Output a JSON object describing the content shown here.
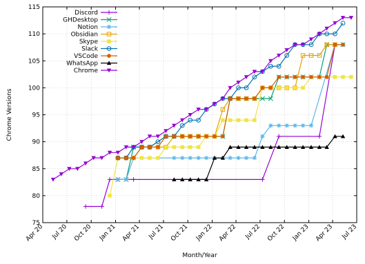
{
  "chart_data": {
    "type": "line",
    "xlabel": "Month/Year",
    "ylabel": "Chrome Versions",
    "ylim": [
      75,
      115
    ],
    "xlim": [
      "2020-04",
      "2023-07"
    ],
    "grid": true,
    "legend_position": "top-left",
    "y_ticks": [
      "75",
      "80",
      "85",
      "90",
      "95",
      "100",
      "105",
      "110",
      "115"
    ],
    "x_ticks": [
      {
        "label": "Apr 20",
        "date": "2020-04"
      },
      {
        "label": "Jul 20",
        "date": "2020-07"
      },
      {
        "label": "Oct 20",
        "date": "2020-10"
      },
      {
        "label": "Jan 21",
        "date": "2021-01"
      },
      {
        "label": "Apr 21",
        "date": "2021-04"
      },
      {
        "label": "Jul 21",
        "date": "2021-07"
      },
      {
        "label": "Oct 21",
        "date": "2021-10"
      },
      {
        "label": "Jan 22",
        "date": "2022-01"
      },
      {
        "label": "Apr 22",
        "date": "2022-04"
      },
      {
        "label": "Jul 22",
        "date": "2022-07"
      },
      {
        "label": "Oct 22",
        "date": "2022-10"
      },
      {
        "label": "Jan 23",
        "date": "2023-01"
      },
      {
        "label": "Apr 23",
        "date": "2023-04"
      },
      {
        "label": "Jul 23",
        "date": "2023-07"
      }
    ],
    "series": [
      {
        "name": "Discord",
        "color": "#9400d3",
        "marker": "plus",
        "points": [
          [
            "2020-09-10",
            78
          ],
          [
            "2020-11-10",
            78
          ],
          [
            "2020-12-10",
            83
          ],
          [
            "2021-01-10",
            83
          ],
          [
            "2021-03-10",
            83
          ],
          [
            "2022-07-10",
            83
          ],
          [
            "2022-09-10",
            91
          ],
          [
            "2023-02-10",
            91
          ],
          [
            "2023-04-10",
            108
          ]
        ]
      },
      {
        "name": "GHDesktop",
        "color": "#009e73",
        "marker": "x",
        "points": [
          [
            "2021-01-10",
            83
          ],
          [
            "2021-02-10",
            83
          ],
          [
            "2021-03-10",
            89
          ],
          [
            "2021-04-10",
            89
          ],
          [
            "2021-05-10",
            89
          ],
          [
            "2021-07-10",
            91
          ],
          [
            "2021-08-10",
            91
          ],
          [
            "2021-09-10",
            91
          ],
          [
            "2021-10-10",
            91
          ],
          [
            "2021-11-10",
            91
          ],
          [
            "2021-12-10",
            91
          ],
          [
            "2022-01-10",
            91
          ],
          [
            "2022-02-10",
            91
          ],
          [
            "2022-03-10",
            98
          ],
          [
            "2022-04-10",
            98
          ],
          [
            "2022-05-10",
            98
          ],
          [
            "2022-06-10",
            98
          ],
          [
            "2022-07-10",
            98
          ],
          [
            "2022-08-10",
            98
          ],
          [
            "2022-09-10",
            102
          ],
          [
            "2022-10-10",
            102
          ],
          [
            "2022-11-10",
            102
          ],
          [
            "2022-12-10",
            102
          ],
          [
            "2023-01-10",
            102
          ],
          [
            "2023-02-10",
            102
          ],
          [
            "2023-03-10",
            108
          ],
          [
            "2023-04-10",
            108
          ],
          [
            "2023-05-10",
            108
          ]
        ]
      },
      {
        "name": "Notion",
        "color": "#56b4e9",
        "marker": "star",
        "points": [
          [
            "2021-01-10",
            83
          ],
          [
            "2021-02-10",
            83
          ],
          [
            "2021-03-10",
            87
          ],
          [
            "2021-08-10",
            87
          ],
          [
            "2021-09-10",
            87
          ],
          [
            "2021-10-10",
            87
          ],
          [
            "2021-11-10",
            87
          ],
          [
            "2021-12-10",
            87
          ],
          [
            "2022-01-10",
            87
          ],
          [
            "2022-02-10",
            87
          ],
          [
            "2022-03-10",
            87
          ],
          [
            "2022-04-10",
            87
          ],
          [
            "2022-05-10",
            87
          ],
          [
            "2022-06-10",
            87
          ],
          [
            "2022-07-10",
            91
          ],
          [
            "2022-08-10",
            93
          ],
          [
            "2022-09-10",
            93
          ],
          [
            "2022-10-10",
            93
          ],
          [
            "2022-11-10",
            93
          ],
          [
            "2022-12-10",
            93
          ],
          [
            "2023-01-10",
            93
          ],
          [
            "2023-04-10",
            108
          ],
          [
            "2023-05-10",
            108
          ]
        ]
      },
      {
        "name": "Obsidian",
        "color": "#e69f00",
        "marker": "square",
        "points": [
          [
            "2021-01-10",
            87
          ],
          [
            "2021-02-10",
            87
          ],
          [
            "2021-03-10",
            87
          ],
          [
            "2021-04-10",
            89
          ],
          [
            "2021-05-10",
            89
          ],
          [
            "2021-06-10",
            89
          ],
          [
            "2021-07-10",
            89
          ],
          [
            "2021-08-10",
            91
          ],
          [
            "2021-09-10",
            91
          ],
          [
            "2021-10-10",
            91
          ],
          [
            "2021-11-10",
            91
          ],
          [
            "2021-12-10",
            91
          ],
          [
            "2022-01-10",
            91
          ],
          [
            "2022-02-10",
            96
          ],
          [
            "2022-03-10",
            98
          ],
          [
            "2022-04-10",
            98
          ],
          [
            "2022-05-10",
            98
          ],
          [
            "2022-06-10",
            98
          ],
          [
            "2022-07-10",
            100
          ],
          [
            "2022-08-10",
            100
          ],
          [
            "2022-09-10",
            100
          ],
          [
            "2022-10-10",
            100
          ],
          [
            "2022-11-10",
            100
          ],
          [
            "2022-12-10",
            106
          ],
          [
            "2023-01-10",
            106
          ],
          [
            "2023-02-10",
            106
          ],
          [
            "2023-03-10",
            108
          ],
          [
            "2023-04-10",
            108
          ]
        ]
      },
      {
        "name": "Skype",
        "color": "#f0e442",
        "marker": "filled-square",
        "points": [
          [
            "2020-12-10",
            80
          ],
          [
            "2021-01-10",
            87
          ],
          [
            "2021-02-10",
            87
          ],
          [
            "2021-03-10",
            87
          ],
          [
            "2021-04-10",
            87
          ],
          [
            "2021-05-10",
            87
          ],
          [
            "2021-06-10",
            87
          ],
          [
            "2021-07-10",
            89
          ],
          [
            "2021-08-10",
            89
          ],
          [
            "2021-09-10",
            89
          ],
          [
            "2021-10-10",
            89
          ],
          [
            "2021-11-10",
            89
          ],
          [
            "2021-12-10",
            91
          ],
          [
            "2022-01-10",
            91
          ],
          [
            "2022-02-10",
            94
          ],
          [
            "2022-03-10",
            94
          ],
          [
            "2022-04-10",
            94
          ],
          [
            "2022-05-10",
            94
          ],
          [
            "2022-06-10",
            94
          ],
          [
            "2022-07-10",
            100
          ],
          [
            "2022-08-10",
            100
          ],
          [
            "2022-09-10",
            100
          ],
          [
            "2022-10-10",
            100
          ],
          [
            "2022-11-10",
            100
          ],
          [
            "2022-12-10",
            100
          ],
          [
            "2023-01-10",
            102
          ],
          [
            "2023-02-10",
            102
          ],
          [
            "2023-03-10",
            102
          ],
          [
            "2023-04-10",
            102
          ],
          [
            "2023-05-10",
            102
          ],
          [
            "2023-06-10",
            102
          ]
        ]
      },
      {
        "name": "Slack",
        "color": "#0072b2",
        "marker": "circle",
        "points": [
          [
            "2021-01-10",
            87
          ],
          [
            "2021-02-10",
            87
          ],
          [
            "2021-03-10",
            89
          ],
          [
            "2021-04-10",
            89
          ],
          [
            "2021-05-10",
            89
          ],
          [
            "2021-06-10",
            90
          ],
          [
            "2021-07-10",
            91
          ],
          [
            "2021-08-10",
            91
          ],
          [
            "2021-09-10",
            93
          ],
          [
            "2021-10-10",
            94
          ],
          [
            "2021-11-10",
            94
          ],
          [
            "2021-12-10",
            96
          ],
          [
            "2022-01-10",
            97
          ],
          [
            "2022-02-10",
            98
          ],
          [
            "2022-03-10",
            98
          ],
          [
            "2022-04-10",
            100
          ],
          [
            "2022-05-10",
            100
          ],
          [
            "2022-06-10",
            102
          ],
          [
            "2022-07-10",
            103
          ],
          [
            "2022-08-10",
            104
          ],
          [
            "2022-09-10",
            104
          ],
          [
            "2022-10-10",
            106
          ],
          [
            "2022-11-10",
            108
          ],
          [
            "2022-12-10",
            108
          ],
          [
            "2023-01-10",
            108
          ],
          [
            "2023-02-10",
            110
          ],
          [
            "2023-03-10",
            110
          ],
          [
            "2023-04-10",
            110
          ],
          [
            "2023-05-10",
            112
          ]
        ]
      },
      {
        "name": "VSCode",
        "color": "#d55e00",
        "marker": "filled-circle",
        "points": [
          [
            "2021-01-10",
            87
          ],
          [
            "2021-02-10",
            87
          ],
          [
            "2021-03-10",
            87
          ],
          [
            "2021-04-10",
            89
          ],
          [
            "2021-05-10",
            89
          ],
          [
            "2021-06-10",
            89
          ],
          [
            "2021-07-10",
            91
          ],
          [
            "2021-08-10",
            91
          ],
          [
            "2021-09-10",
            91
          ],
          [
            "2021-10-10",
            91
          ],
          [
            "2021-11-10",
            91
          ],
          [
            "2021-12-10",
            91
          ],
          [
            "2022-01-10",
            91
          ],
          [
            "2022-02-10",
            91
          ],
          [
            "2022-03-10",
            98
          ],
          [
            "2022-04-10",
            98
          ],
          [
            "2022-05-10",
            98
          ],
          [
            "2022-06-10",
            98
          ],
          [
            "2022-07-10",
            100
          ],
          [
            "2022-08-10",
            100
          ],
          [
            "2022-09-10",
            102
          ],
          [
            "2022-10-10",
            102
          ],
          [
            "2022-11-10",
            102
          ],
          [
            "2022-12-10",
            102
          ],
          [
            "2023-01-10",
            102
          ],
          [
            "2023-02-10",
            102
          ],
          [
            "2023-03-10",
            102
          ],
          [
            "2023-04-10",
            108
          ],
          [
            "2023-05-10",
            108
          ]
        ]
      },
      {
        "name": "WhatsApp",
        "color": "#000000",
        "marker": "triangle",
        "points": [
          [
            "2021-08-10",
            83
          ],
          [
            "2021-09-10",
            83
          ],
          [
            "2021-10-10",
            83
          ],
          [
            "2021-11-10",
            83
          ],
          [
            "2021-12-10",
            83
          ],
          [
            "2022-01-10",
            87
          ],
          [
            "2022-02-10",
            87
          ],
          [
            "2022-03-10",
            89
          ],
          [
            "2022-04-10",
            89
          ],
          [
            "2022-05-10",
            89
          ],
          [
            "2022-06-10",
            89
          ],
          [
            "2022-07-10",
            89
          ],
          [
            "2022-08-10",
            89
          ],
          [
            "2022-09-10",
            89
          ],
          [
            "2022-10-10",
            89
          ],
          [
            "2022-11-10",
            89
          ],
          [
            "2022-12-10",
            89
          ],
          [
            "2023-01-10",
            89
          ],
          [
            "2023-02-10",
            89
          ],
          [
            "2023-03-10",
            89
          ],
          [
            "2023-04-10",
            91
          ],
          [
            "2023-05-10",
            91
          ]
        ]
      },
      {
        "name": "Chrome",
        "color": "#9400d3",
        "marker": "triangle-down",
        "points": [
          [
            "2020-05-10",
            83
          ],
          [
            "2020-06-10",
            84
          ],
          [
            "2020-07-10",
            85
          ],
          [
            "2020-08-10",
            85
          ],
          [
            "2020-09-10",
            86
          ],
          [
            "2020-10-10",
            87
          ],
          [
            "2020-11-10",
            87
          ],
          [
            "2020-12-10",
            88
          ],
          [
            "2021-01-10",
            88
          ],
          [
            "2021-02-10",
            89
          ],
          [
            "2021-03-10",
            89
          ],
          [
            "2021-04-10",
            90
          ],
          [
            "2021-05-10",
            91
          ],
          [
            "2021-06-10",
            91
          ],
          [
            "2021-07-10",
            92
          ],
          [
            "2021-08-10",
            93
          ],
          [
            "2021-09-10",
            94
          ],
          [
            "2021-10-10",
            95
          ],
          [
            "2021-11-10",
            96
          ],
          [
            "2021-12-10",
            96
          ],
          [
            "2022-01-10",
            97
          ],
          [
            "2022-02-10",
            98
          ],
          [
            "2022-03-10",
            100
          ],
          [
            "2022-04-10",
            101
          ],
          [
            "2022-05-10",
            102
          ],
          [
            "2022-06-10",
            103
          ],
          [
            "2022-07-10",
            103
          ],
          [
            "2022-08-10",
            105
          ],
          [
            "2022-09-10",
            106
          ],
          [
            "2022-10-10",
            107
          ],
          [
            "2022-11-10",
            108
          ],
          [
            "2022-12-10",
            108
          ],
          [
            "2023-01-10",
            109
          ],
          [
            "2023-02-10",
            110
          ],
          [
            "2023-03-10",
            111
          ],
          [
            "2023-04-10",
            112
          ],
          [
            "2023-05-10",
            113
          ],
          [
            "2023-06-10",
            113
          ]
        ]
      }
    ]
  }
}
